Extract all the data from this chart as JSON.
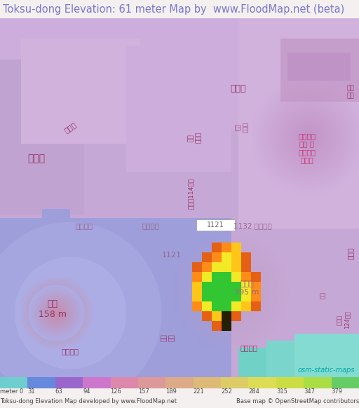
{
  "title": "Toksu-dong Elevation: 61 meter Map by  www.FloodMap.net (beta)",
  "title_color": "#7777cc",
  "title_fontsize": 10.5,
  "title_bg": "#f5f0f0",
  "background_color": "#f5f0f0",
  "fig_width": 5.12,
  "fig_height": 5.82,
  "colorbar_colors": [
    "#6ecece",
    "#6688dd",
    "#9966cc",
    "#cc77cc",
    "#dd88aa",
    "#dd9999",
    "#ddaa88",
    "#ddbb77",
    "#ddcc66",
    "#dddd55",
    "#ccdd44",
    "#aadd44",
    "#66cc66"
  ],
  "colorbar_labels": [
    "meter 0",
    "31",
    "63",
    "94",
    "126",
    "157",
    "189",
    "221",
    "252",
    "284",
    "315",
    "347",
    "379"
  ],
  "footer_left": "Toksu-dong Elevation Map developed by www.FloodMap.net",
  "footer_right": "Base map © OpenStreetMap contributors",
  "osm_label": "osm-static-maps",
  "osm_color": "#00aaaa",
  "map_bg": "#c8a8d8",
  "blue_low": "#8888cc",
  "pink_high": "#cc88bb"
}
